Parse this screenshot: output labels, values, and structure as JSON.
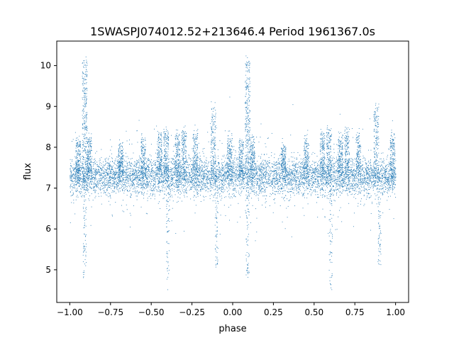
{
  "chart_data": {
    "type": "scatter",
    "title": "1SWASPJ074012.52+213646.4 Period 1961367.0s",
    "xlabel": "phase",
    "ylabel": "flux",
    "xlim": [
      -1.08,
      1.08
    ],
    "ylim": [
      4.2,
      10.6
    ],
    "xticks": [
      -1.0,
      -0.75,
      -0.5,
      -0.25,
      0.0,
      0.25,
      0.5,
      0.75,
      1.0
    ],
    "xtick_labels": [
      "−1.00",
      "−0.75",
      "−0.50",
      "−0.25",
      "0.00",
      "0.25",
      "0.50",
      "0.75",
      "1.00"
    ],
    "yticks": [
      5,
      6,
      7,
      8,
      9,
      10
    ],
    "ytick_labels": [
      "5",
      "6",
      "7",
      "8",
      "9",
      "10"
    ],
    "grid": false,
    "legend": "none",
    "point_color": "#1f77b4",
    "baseline_flux": 7.3,
    "phase_range": [
      -1.0,
      1.0
    ],
    "bright_clusters": [
      {
        "phase": -0.95,
        "flux": 8.0
      },
      {
        "phase": -0.91,
        "flux": 9.6
      },
      {
        "phase": -0.88,
        "flux": 8.0
      },
      {
        "phase": -0.69,
        "flux": 7.9
      },
      {
        "phase": -0.55,
        "flux": 8.0
      },
      {
        "phase": -0.45,
        "flux": 8.1
      },
      {
        "phase": -0.41,
        "flux": 8.2
      },
      {
        "phase": -0.34,
        "flux": 8.1
      },
      {
        "phase": -0.3,
        "flux": 8.2
      },
      {
        "phase": -0.23,
        "flux": 8.1
      },
      {
        "phase": -0.12,
        "flux": 8.6
      },
      {
        "phase": -0.02,
        "flux": 8.1
      },
      {
        "phase": 0.05,
        "flux": 8.0
      },
      {
        "phase": 0.09,
        "flux": 9.6
      },
      {
        "phase": 0.12,
        "flux": 8.0
      },
      {
        "phase": 0.31,
        "flux": 7.9
      },
      {
        "phase": 0.45,
        "flux": 8.0
      },
      {
        "phase": 0.55,
        "flux": 8.1
      },
      {
        "phase": 0.59,
        "flux": 8.2
      },
      {
        "phase": 0.66,
        "flux": 8.1
      },
      {
        "phase": 0.7,
        "flux": 8.2
      },
      {
        "phase": 0.77,
        "flux": 8.1
      },
      {
        "phase": 0.88,
        "flux": 8.6
      },
      {
        "phase": 0.98,
        "flux": 8.1
      }
    ],
    "faint_dips": [
      {
        "phase": -0.91,
        "flux": 5.5
      },
      {
        "phase": -0.4,
        "flux": 5.3
      },
      {
        "phase": -0.1,
        "flux": 5.7
      },
      {
        "phase": 0.09,
        "flux": 5.5
      },
      {
        "phase": 0.6,
        "flux": 5.3
      },
      {
        "phase": 0.9,
        "flux": 5.7
      }
    ]
  }
}
